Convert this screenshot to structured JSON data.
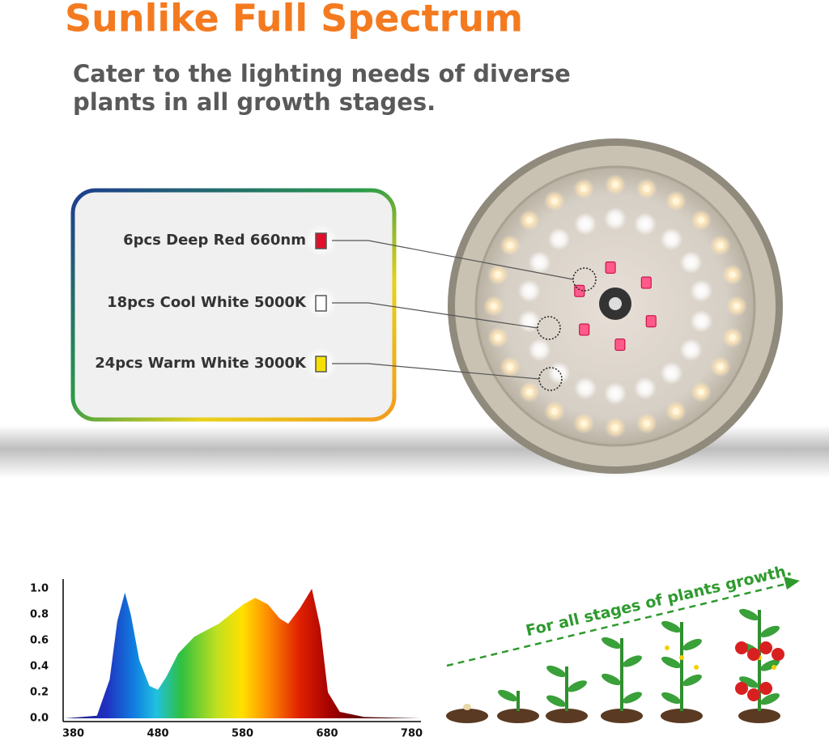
{
  "header": {
    "title": "Sunlike Full Spectrum",
    "subtitle_lines": [
      "Cater to the lighting needs of diverse",
      "plants in all growth stages."
    ]
  },
  "led_types": [
    {
      "label": "6pcs Deep Red 660nm",
      "color": "#e0102a"
    },
    {
      "label": "18pcs Cool White 5000K",
      "color": "#ffffff"
    },
    {
      "label": "24pcs Warm White 3000K",
      "color": "#f5e000"
    }
  ],
  "chart_data": {
    "type": "area",
    "x": [
      370,
      408,
      423,
      432,
      441,
      448,
      458,
      470,
      480,
      490,
      504,
      523,
      552,
      581,
      595,
      610,
      624,
      634,
      648,
      662,
      672,
      681,
      695,
      724,
      790
    ],
    "values": [
      0,
      0.02,
      0.3,
      0.75,
      0.97,
      0.8,
      0.45,
      0.25,
      0.22,
      0.32,
      0.5,
      0.63,
      0.73,
      0.88,
      0.93,
      0.88,
      0.77,
      0.73,
      0.85,
      1.0,
      0.7,
      0.2,
      0.05,
      0.01,
      0
    ],
    "xlim": [
      368,
      791
    ],
    "ylim": [
      0,
      1.0
    ],
    "xticks": [
      380,
      480,
      580,
      680,
      780
    ],
    "yticks": [
      {
        "value": 0,
        "label": "0.0"
      },
      0.2,
      0.4,
      0.6,
      0.8,
      {
        "value": 1,
        "label": "1.0"
      }
    ]
  },
  "growth": {
    "caption": "For all stages of plants growth."
  }
}
